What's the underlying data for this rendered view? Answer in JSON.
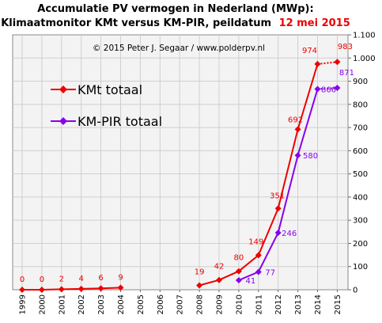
{
  "chart_data": {
    "type": "line",
    "title_line1": "Accumulatie PV vermogen in Nederland (MWp):",
    "title_line2": "Klimaatmonitor KMt versus KM-PIR, peildatum",
    "title_date": "12 mei 2015",
    "copyright": "© 2015 Peter J. Segaar / www.polderpv.nl",
    "xlabel": "",
    "ylabel": "",
    "ylim": [
      0,
      1100
    ],
    "yticks": [
      0,
      100,
      200,
      300,
      400,
      500,
      600,
      700,
      800,
      900,
      1000,
      1100
    ],
    "ytick_labels": [
      "0",
      "100",
      "200",
      "300",
      "400",
      "500",
      "600",
      "700",
      "800",
      "900",
      "1.000",
      "1.100"
    ],
    "categories": [
      "1999",
      "2000",
      "2001",
      "2002",
      "2003",
      "2004",
      "2005",
      "2006",
      "2007",
      "2008",
      "2009",
      "2010",
      "2011",
      "2012",
      "2013",
      "2014",
      "2015"
    ],
    "grid": true,
    "legend_position": "top-left",
    "series": [
      {
        "name": "KMt totaal",
        "color": "#ee0000",
        "segments": [
          {
            "x": [
              "1999",
              "2000",
              "2001",
              "2002",
              "2003",
              "2004"
            ],
            "y": [
              0,
              0,
              2,
              4,
              6,
              9
            ]
          },
          {
            "x": [
              "2008",
              "2009",
              "2010",
              "2011",
              "2012",
              "2013",
              "2014"
            ],
            "y": [
              19,
              42,
              80,
              149,
              351,
              692,
              974
            ]
          }
        ],
        "dotted_segment": {
          "x": [
            "2014",
            "2015"
          ],
          "y": [
            974,
            983
          ]
        },
        "labels": [
          {
            "x": "1999",
            "text": "0"
          },
          {
            "x": "2000",
            "text": "0"
          },
          {
            "x": "2001",
            "text": "2"
          },
          {
            "x": "2002",
            "text": "4"
          },
          {
            "x": "2003",
            "text": "6"
          },
          {
            "x": "2004",
            "text": "9"
          },
          {
            "x": "2008",
            "text": "19"
          },
          {
            "x": "2009",
            "text": "42"
          },
          {
            "x": "2010",
            "text": "80"
          },
          {
            "x": "2011",
            "text": "149"
          },
          {
            "x": "2012",
            "text": "351"
          },
          {
            "x": "2013",
            "text": "692"
          },
          {
            "x": "2014",
            "text": "974"
          },
          {
            "x": "2015",
            "text": "983"
          }
        ]
      },
      {
        "name": "KM-PIR totaal",
        "color": "#8800ee",
        "segments": [
          {
            "x": [
              "2010",
              "2011",
              "2012",
              "2013",
              "2014"
            ],
            "y": [
              41,
              77,
              246,
              580,
              866
            ]
          }
        ],
        "dotted_segment": {
          "x": [
            "2014",
            "2015"
          ],
          "y": [
            866,
            871
          ]
        },
        "labels": [
          {
            "x": "2010",
            "text": "41"
          },
          {
            "x": "2011",
            "text": "77"
          },
          {
            "x": "2012",
            "text": "246"
          },
          {
            "x": "2013",
            "text": "580"
          },
          {
            "x": "2014",
            "text": "866"
          },
          {
            "x": "2015",
            "text": "871"
          }
        ]
      }
    ]
  }
}
